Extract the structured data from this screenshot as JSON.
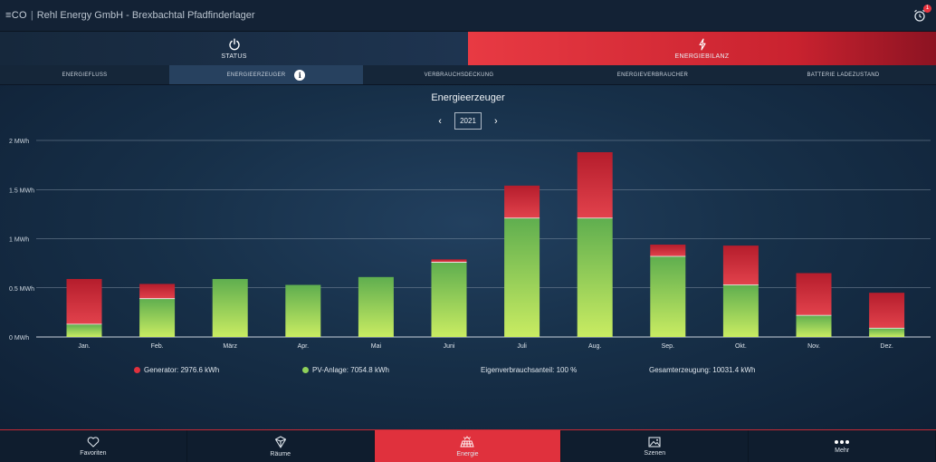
{
  "header": {
    "logo": "≡CO",
    "separator": "|",
    "title": "Rehl Energy GmbH - Brexbachtal Pfadfinderlager",
    "alarm_badge": "1"
  },
  "main_tabs": [
    {
      "label": "STATUS",
      "icon": "power-icon"
    },
    {
      "label": "ENERGIEBILANZ",
      "icon": "lightning-icon"
    }
  ],
  "sub_tabs": [
    {
      "label": "ENERGIEFLUSS"
    },
    {
      "label": "ENERGIEERZEUGER",
      "active": true,
      "info": "i"
    },
    {
      "label": "VERBRAUCHSDECKUNG"
    },
    {
      "label": "ENERGIEVERBRAUCHER"
    },
    {
      "label": "BATTERIE LADEZUSTAND"
    }
  ],
  "chart_header": {
    "title": "Energieerzeuger",
    "year": "2021",
    "prev": "‹",
    "next": "›"
  },
  "legend": {
    "generator": "Generator: 2976.6 kWh",
    "pv": "PV-Anlage: 7054.8 kWh",
    "eigen": "Eigenverbrauchsanteil: 100 %",
    "gesamt": "Gesamterzeugung: 10031.4 kWh"
  },
  "colors": {
    "generator": "#e0313d",
    "pv": "#8fd15a",
    "accent": "#e0313d",
    "background": "#173049"
  },
  "chart_data": {
    "type": "bar",
    "stacked": true,
    "categories": [
      "Jan.",
      "Feb.",
      "März",
      "Apr.",
      "Mai",
      "Juni",
      "Juli",
      "Aug.",
      "Sep.",
      "Okt.",
      "Nov.",
      "Dez."
    ],
    "series": [
      {
        "name": "PV-Anlage",
        "values": [
          0.13,
          0.39,
          0.59,
          0.53,
          0.61,
          0.76,
          1.21,
          1.21,
          0.82,
          0.53,
          0.22,
          0.09
        ]
      },
      {
        "name": "Generator",
        "values": [
          0.46,
          0.15,
          0.0,
          0.0,
          0.0,
          0.03,
          0.33,
          0.67,
          0.12,
          0.4,
          0.43,
          0.36
        ]
      }
    ],
    "y_ticks": [
      "0 MWh",
      "0.5 MWh",
      "1 MWh",
      "1.5 MWh",
      "2 MWh"
    ],
    "y_tick_values": [
      0,
      0.5,
      1,
      1.5,
      2
    ],
    "ylim": [
      0,
      2
    ],
    "grid": true
  },
  "bottom_nav": [
    {
      "label": "Favoriten",
      "icon": "heart-icon"
    },
    {
      "label": "Räume",
      "icon": "cube-icon"
    },
    {
      "label": "Energie",
      "icon": "solar-panel-icon",
      "active": true
    },
    {
      "label": "Szenen",
      "icon": "image-icon"
    },
    {
      "label": "Mehr",
      "icon": "more-icon"
    }
  ]
}
